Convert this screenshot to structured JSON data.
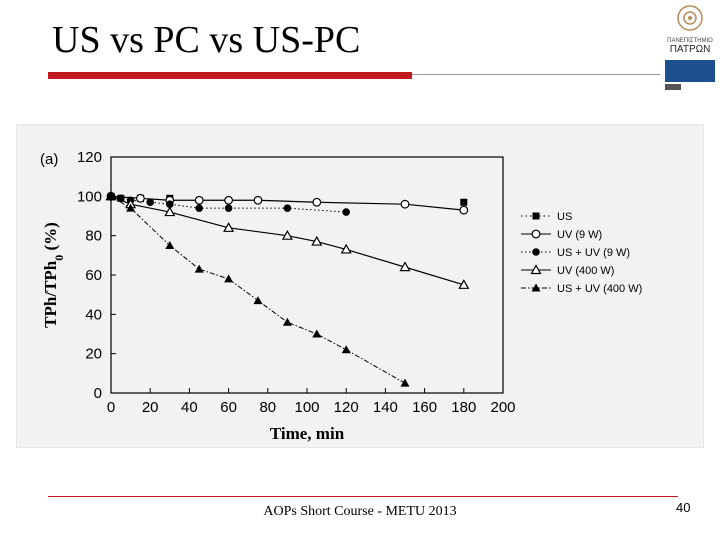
{
  "slide": {
    "title": "US vs PC vs US-PC",
    "footer": "AOPs Short Course - METU 2013",
    "page_number": "40"
  },
  "logo": {
    "line1": "ΠΑΝΕΠΙΣΤΗΜΙΟ",
    "line2": "ΠΑΤΡΩΝ",
    "accent": "#1d4f8f"
  },
  "colors": {
    "title_bar": "#c0191f",
    "footer_rule": "#c0191f"
  },
  "chart_data": {
    "type": "line",
    "panel_label": "(a)",
    "xlabel": "Time, min",
    "ylabel": "TPh/TPh",
    "ylabel_sub": "0",
    "ylabel_tail": " (%)",
    "xlim": [
      0,
      200
    ],
    "ylim": [
      0,
      120
    ],
    "xticks": [
      0,
      20,
      40,
      60,
      80,
      100,
      120,
      140,
      160,
      180,
      200
    ],
    "yticks": [
      0,
      20,
      40,
      60,
      80,
      100,
      120
    ],
    "legend_position": "right",
    "series": [
      {
        "name": "US",
        "marker": "square-filled",
        "line": "none",
        "x": [
          0,
          5,
          15,
          30,
          180
        ],
        "y": [
          100,
          99,
          99,
          99,
          97
        ]
      },
      {
        "name": "UV (9 W)",
        "marker": "circle-open",
        "line": "solid",
        "x": [
          0,
          15,
          30,
          45,
          60,
          75,
          105,
          150,
          180
        ],
        "y": [
          100,
          99,
          98,
          98,
          98,
          98,
          97,
          96,
          93
        ]
      },
      {
        "name": "US + UV (9 W)",
        "marker": "circle-filled",
        "line": "dotted",
        "x": [
          0,
          5,
          10,
          20,
          30,
          45,
          60,
          90,
          120
        ],
        "y": [
          100,
          99,
          98,
          97,
          96,
          94,
          94,
          94,
          92
        ]
      },
      {
        "name": "UV (400 W)",
        "marker": "triangle-open",
        "line": "solid",
        "x": [
          0,
          10,
          30,
          60,
          90,
          105,
          120,
          150,
          180
        ],
        "y": [
          100,
          96,
          92,
          84,
          80,
          77,
          73,
          64,
          55
        ]
      },
      {
        "name": "US + UV (400 W)",
        "marker": "triangle-filled",
        "line": "dash-dot",
        "x": [
          0,
          10,
          30,
          45,
          60,
          75,
          90,
          105,
          120,
          150
        ],
        "y": [
          100,
          94,
          75,
          63,
          58,
          47,
          36,
          30,
          22,
          5
        ]
      }
    ]
  }
}
